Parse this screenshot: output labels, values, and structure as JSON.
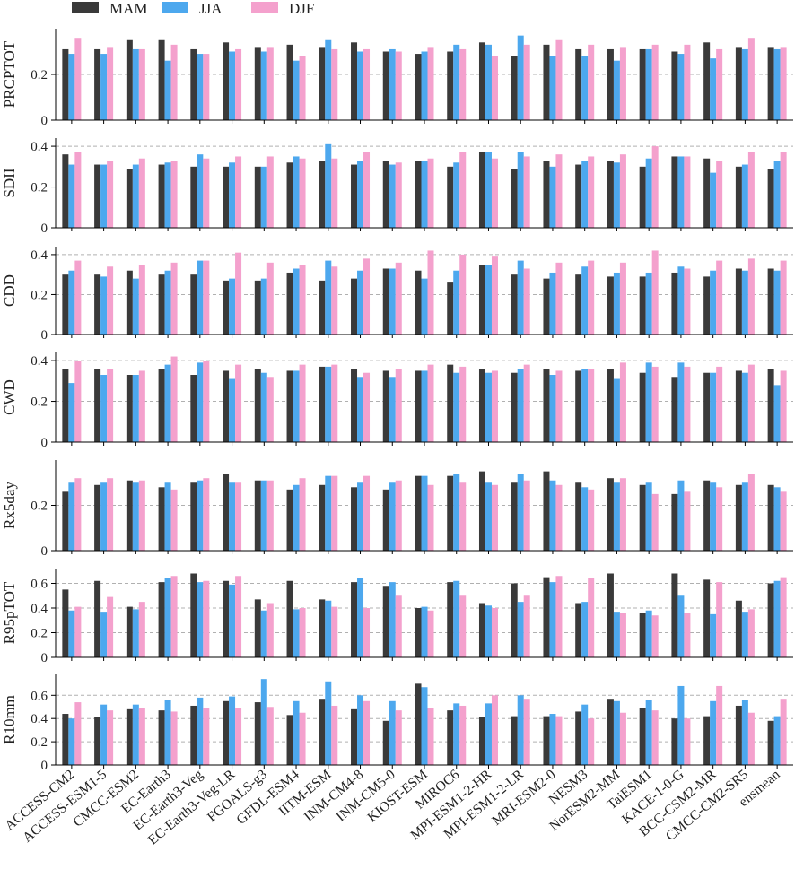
{
  "chart_data": {
    "type": "bar",
    "layout": "stacked-subplots-shared-x",
    "grid": "horizontal dashed",
    "legend": {
      "placement": "top-left, outside",
      "entries": [
        {
          "name": "MAM",
          "color": "#3a3a3a"
        },
        {
          "name": "JJA",
          "color": "#4da8ee"
        },
        {
          "name": "DJF",
          "color": "#f4a1cd"
        }
      ]
    },
    "categories": [
      "ACCESS-CM2",
      "ACCESS-ESM1-5",
      "CMCC-ESM2",
      "EC-Earth3",
      "EC-Earth3-Veg",
      "EC-Earth3-Veg-LR",
      "FGOALS-g3",
      "GFDL-ESM4",
      "IITM-ESM",
      "INM-CM4-8",
      "INM-CM5-0",
      "KIOST-ESM",
      "MIROC6",
      "MPI-ESM1-2-HR",
      "MPI-ESM1-2-LR",
      "MRI-ESM2-0",
      "NESM3",
      "NorESM2-MM",
      "TaiESM1",
      "KACE-1-0-G",
      "BCC-CSM2-MR",
      "CMCC-CM2-SR5",
      "ensmean"
    ],
    "panels": [
      {
        "ylabel": "PRCPTOT",
        "ylim": [
          0,
          0.4
        ],
        "yticks": [
          0,
          0.2
        ],
        "ytick_labels": [
          "0",
          "0.2"
        ],
        "series": [
          {
            "name": "MAM",
            "values": [
              0.31,
              0.31,
              0.35,
              0.35,
              0.31,
              0.34,
              0.32,
              0.33,
              0.32,
              0.34,
              0.3,
              0.29,
              0.3,
              0.34,
              0.28,
              0.33,
              0.31,
              0.31,
              0.31,
              0.3,
              0.34,
              0.32,
              0.32
            ]
          },
          {
            "name": "JJA",
            "values": [
              0.29,
              0.29,
              0.31,
              0.26,
              0.29,
              0.3,
              0.3,
              0.26,
              0.35,
              0.3,
              0.31,
              0.3,
              0.33,
              0.33,
              0.37,
              0.28,
              0.28,
              0.26,
              0.31,
              0.29,
              0.27,
              0.31,
              0.31
            ]
          },
          {
            "name": "DJF",
            "values": [
              0.36,
              0.32,
              0.31,
              0.33,
              0.29,
              0.31,
              0.32,
              0.28,
              0.31,
              0.31,
              0.3,
              0.32,
              0.31,
              0.28,
              0.33,
              0.35,
              0.33,
              0.32,
              0.33,
              0.33,
              0.31,
              0.36,
              0.32
            ]
          }
        ]
      },
      {
        "ylabel": "SDII",
        "ylim": [
          0,
          0.44
        ],
        "yticks": [
          0,
          0.2,
          0.4
        ],
        "ytick_labels": [
          "0",
          "0.2",
          "0.4"
        ],
        "series": [
          {
            "name": "MAM",
            "values": [
              0.36,
              0.31,
              0.29,
              0.31,
              0.3,
              0.3,
              0.3,
              0.32,
              0.33,
              0.31,
              0.33,
              0.33,
              0.3,
              0.37,
              0.29,
              0.33,
              0.31,
              0.33,
              0.3,
              0.35,
              0.34,
              0.3,
              0.29
            ]
          },
          {
            "name": "JJA",
            "values": [
              0.31,
              0.31,
              0.31,
              0.32,
              0.36,
              0.32,
              0.3,
              0.35,
              0.41,
              0.33,
              0.31,
              0.33,
              0.32,
              0.37,
              0.37,
              0.3,
              0.33,
              0.32,
              0.34,
              0.35,
              0.27,
              0.31,
              0.33
            ]
          },
          {
            "name": "DJF",
            "values": [
              0.37,
              0.33,
              0.34,
              0.33,
              0.34,
              0.35,
              0.35,
              0.34,
              0.34,
              0.37,
              0.32,
              0.34,
              0.37,
              0.34,
              0.35,
              0.36,
              0.35,
              0.36,
              0.4,
              0.35,
              0.33,
              0.37,
              0.37
            ]
          }
        ]
      },
      {
        "ylabel": "CDD",
        "ylim": [
          0,
          0.44
        ],
        "yticks": [
          0,
          0.2,
          0.4
        ],
        "ytick_labels": [
          "0",
          "0.2",
          "0.4"
        ],
        "series": [
          {
            "name": "MAM",
            "values": [
              0.3,
              0.3,
              0.32,
              0.3,
              0.3,
              0.27,
              0.27,
              0.31,
              0.27,
              0.28,
              0.33,
              0.32,
              0.26,
              0.35,
              0.3,
              0.28,
              0.3,
              0.29,
              0.29,
              0.31,
              0.29,
              0.33,
              0.33
            ]
          },
          {
            "name": "JJA",
            "values": [
              0.32,
              0.29,
              0.28,
              0.32,
              0.37,
              0.28,
              0.28,
              0.33,
              0.37,
              0.32,
              0.33,
              0.28,
              0.32,
              0.35,
              0.37,
              0.31,
              0.34,
              0.31,
              0.31,
              0.34,
              0.32,
              0.32,
              0.32
            ]
          },
          {
            "name": "DJF",
            "values": [
              0.37,
              0.34,
              0.35,
              0.36,
              0.37,
              0.41,
              0.36,
              0.35,
              0.34,
              0.38,
              0.36,
              0.42,
              0.4,
              0.39,
              0.33,
              0.36,
              0.37,
              0.36,
              0.42,
              0.33,
              0.37,
              0.38,
              0.37
            ]
          }
        ]
      },
      {
        "ylabel": "CWD",
        "ylim": [
          0,
          0.44
        ],
        "yticks": [
          0,
          0.2,
          0.4
        ],
        "ytick_labels": [
          "0",
          "0.2",
          "0.4"
        ],
        "series": [
          {
            "name": "MAM",
            "values": [
              0.36,
              0.36,
              0.33,
              0.36,
              0.33,
              0.35,
              0.36,
              0.35,
              0.37,
              0.36,
              0.35,
              0.35,
              0.38,
              0.36,
              0.34,
              0.36,
              0.35,
              0.36,
              0.34,
              0.32,
              0.34,
              0.35,
              0.36
            ]
          },
          {
            "name": "JJA",
            "values": [
              0.29,
              0.33,
              0.33,
              0.38,
              0.39,
              0.31,
              0.34,
              0.35,
              0.37,
              0.32,
              0.32,
              0.35,
              0.34,
              0.34,
              0.36,
              0.33,
              0.36,
              0.31,
              0.39,
              0.39,
              0.34,
              0.34,
              0.28
            ]
          },
          {
            "name": "DJF",
            "values": [
              0.4,
              0.36,
              0.35,
              0.42,
              0.4,
              0.38,
              0.32,
              0.38,
              0.38,
              0.34,
              0.36,
              0.38,
              0.37,
              0.35,
              0.38,
              0.35,
              0.36,
              0.39,
              0.37,
              0.37,
              0.37,
              0.38,
              0.35
            ]
          }
        ]
      },
      {
        "ylabel": "Rx5day",
        "ylim": [
          0,
          0.4
        ],
        "yticks": [
          0,
          0.2
        ],
        "ytick_labels": [
          "0",
          "0.2"
        ],
        "series": [
          {
            "name": "MAM",
            "values": [
              0.26,
              0.29,
              0.31,
              0.28,
              0.3,
              0.34,
              0.31,
              0.27,
              0.29,
              0.28,
              0.27,
              0.33,
              0.33,
              0.35,
              0.3,
              0.35,
              0.3,
              0.32,
              0.29,
              0.25,
              0.31,
              0.29,
              0.29
            ]
          },
          {
            "name": "JJA",
            "values": [
              0.3,
              0.3,
              0.3,
              0.3,
              0.31,
              0.3,
              0.31,
              0.29,
              0.33,
              0.3,
              0.3,
              0.33,
              0.34,
              0.3,
              0.34,
              0.31,
              0.28,
              0.3,
              0.3,
              0.31,
              0.3,
              0.3,
              0.28
            ]
          },
          {
            "name": "DJF",
            "values": [
              0.32,
              0.32,
              0.31,
              0.27,
              0.32,
              0.3,
              0.31,
              0.32,
              0.33,
              0.33,
              0.31,
              0.29,
              0.3,
              0.29,
              0.31,
              0.29,
              0.27,
              0.32,
              0.25,
              0.26,
              0.28,
              0.34,
              0.26
            ]
          }
        ]
      },
      {
        "ylabel": "R95pTOT",
        "ylim": [
          0,
          0.72
        ],
        "yticks": [
          0,
          0.2,
          0.4,
          0.6
        ],
        "ytick_labels": [
          "0",
          "0.2",
          "0.4",
          "0.6"
        ],
        "series": [
          {
            "name": "MAM",
            "values": [
              0.55,
              0.62,
              0.41,
              0.61,
              0.68,
              0.62,
              0.47,
              0.62,
              0.47,
              0.61,
              0.58,
              0.4,
              0.61,
              0.44,
              0.6,
              0.65,
              0.44,
              0.68,
              0.36,
              0.68,
              0.63,
              0.46,
              0.6
            ]
          },
          {
            "name": "JJA",
            "values": [
              0.38,
              0.37,
              0.39,
              0.64,
              0.61,
              0.59,
              0.38,
              0.39,
              0.46,
              0.64,
              0.61,
              0.41,
              0.62,
              0.42,
              0.45,
              0.61,
              0.45,
              0.37,
              0.38,
              0.5,
              0.35,
              0.37,
              0.62
            ]
          },
          {
            "name": "DJF",
            "values": [
              0.41,
              0.49,
              0.45,
              0.66,
              0.62,
              0.66,
              0.44,
              0.4,
              0.41,
              0.4,
              0.5,
              0.38,
              0.5,
              0.4,
              0.5,
              0.66,
              0.64,
              0.36,
              0.34,
              0.36,
              0.61,
              0.39,
              0.65
            ]
          }
        ]
      },
      {
        "ylabel": "R10mm",
        "ylim": [
          0,
          0.78
        ],
        "yticks": [
          0,
          0.2,
          0.4,
          0.6
        ],
        "ytick_labels": [
          "0",
          "0.2",
          "0.4",
          "0.6"
        ],
        "series": [
          {
            "name": "MAM",
            "values": [
              0.44,
              0.41,
              0.48,
              0.47,
              0.51,
              0.55,
              0.54,
              0.43,
              0.57,
              0.48,
              0.38,
              0.7,
              0.47,
              0.41,
              0.42,
              0.42,
              0.46,
              0.57,
              0.49,
              0.4,
              0.42,
              0.51,
              0.38
            ]
          },
          {
            "name": "JJA",
            "values": [
              0.4,
              0.52,
              0.52,
              0.56,
              0.58,
              0.59,
              0.74,
              0.55,
              0.72,
              0.6,
              0.55,
              0.67,
              0.53,
              0.53,
              0.6,
              0.44,
              0.52,
              0.55,
              0.56,
              0.68,
              0.55,
              0.56,
              0.42
            ]
          },
          {
            "name": "DJF",
            "values": [
              0.54,
              0.47,
              0.49,
              0.46,
              0.49,
              0.49,
              0.5,
              0.45,
              0.51,
              0.55,
              0.47,
              0.49,
              0.51,
              0.6,
              0.57,
              0.42,
              0.4,
              0.45,
              0.47,
              0.4,
              0.68,
              0.45,
              0.57
            ]
          }
        ]
      }
    ]
  }
}
